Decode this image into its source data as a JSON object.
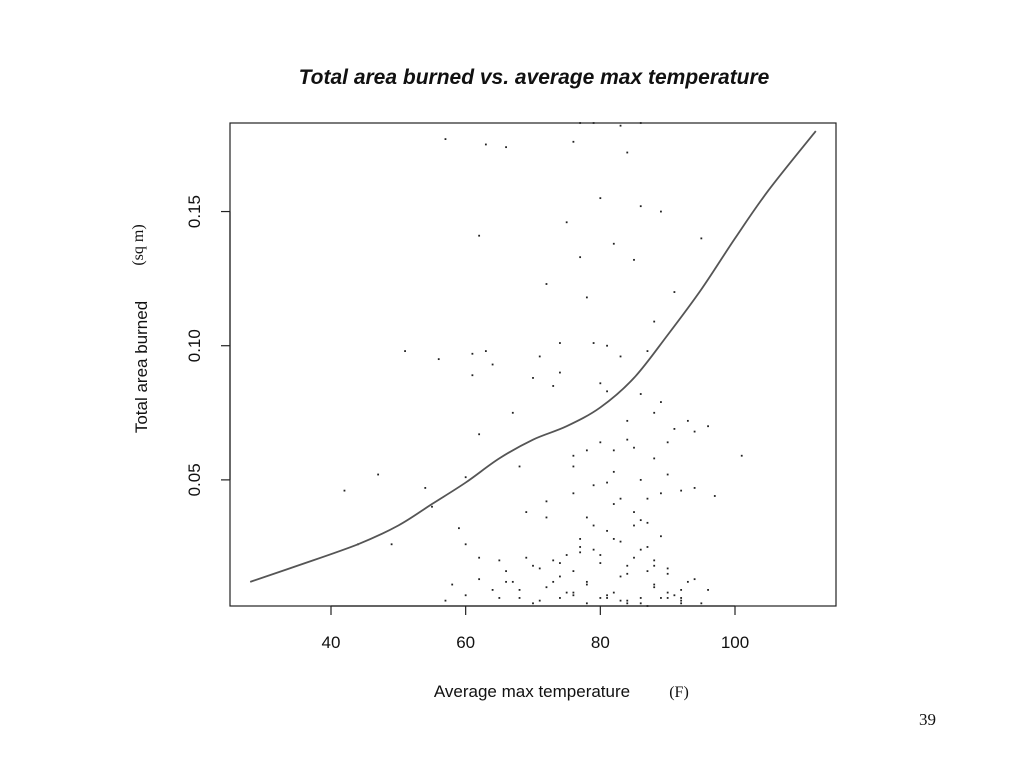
{
  "slide": {
    "page_number": "39"
  },
  "chart_data": {
    "type": "scatter",
    "title": "Total area burned vs. average max temperature",
    "xlabel": "Average max temperature",
    "xlabel_unit": "(F)",
    "ylabel": "Total area burned",
    "ylabel_unit": "(sq m)",
    "xlim": [
      25,
      115
    ],
    "ylim": [
      0.003,
      0.183
    ],
    "x_ticks": [
      40,
      60,
      80,
      100
    ],
    "y_ticks": [
      0.05,
      0.1,
      0.15
    ],
    "x_tick_labels": [
      "40",
      "60",
      "80",
      "100"
    ],
    "y_tick_labels": [
      "0.05",
      "0.10",
      "0.15"
    ],
    "grid": false,
    "colors": {
      "points": "#222222",
      "curve": "#555555",
      "frame": "#222222"
    },
    "trend_curve": {
      "x": [
        28,
        35,
        44,
        50,
        55,
        60,
        65,
        70,
        75,
        80,
        85,
        90,
        95,
        100,
        105,
        112
      ],
      "y": [
        0.012,
        0.018,
        0.026,
        0.033,
        0.041,
        0.049,
        0.058,
        0.065,
        0.07,
        0.077,
        0.088,
        0.104,
        0.121,
        0.14,
        0.158,
        0.18
      ]
    },
    "points": {
      "x": [
        42,
        44,
        47,
        49,
        51,
        54,
        55,
        56,
        57,
        59,
        60,
        61,
        61,
        62,
        62,
        63,
        63,
        64,
        65,
        66,
        67,
        68,
        69,
        70,
        71,
        72,
        72,
        73,
        74,
        74,
        75,
        76,
        76,
        77,
        77,
        78,
        78,
        79,
        79,
        80,
        80,
        81,
        81,
        82,
        82,
        83,
        83,
        84,
        84,
        85,
        85,
        86,
        86,
        87,
        87,
        88,
        88,
        89,
        89,
        90,
        90,
        91,
        92,
        93,
        94,
        95,
        96,
        97,
        101,
        58,
        60,
        62,
        64,
        66,
        68,
        70,
        72,
        74,
        76,
        78,
        80,
        82,
        84,
        86,
        88,
        90,
        92,
        94,
        75,
        77,
        79,
        81,
        83,
        85,
        87,
        89,
        73,
        76,
        80,
        84,
        86,
        88,
        90,
        78,
        82,
        85,
        87,
        83,
        86,
        89,
        92,
        95,
        57,
        67,
        75,
        81,
        84,
        88,
        91,
        69,
        71,
        74,
        77,
        80,
        83,
        85,
        87,
        90,
        93,
        96,
        72,
        76,
        79,
        82,
        86,
        89,
        94,
        65,
        68,
        71,
        73,
        76,
        78,
        81,
        84,
        87,
        90,
        92,
        60,
        62,
        66,
        70,
        74,
        78,
        82,
        86,
        88,
        92,
        77,
        79,
        83,
        86,
        84,
        81,
        88,
        91,
        76,
        80
      ],
      "y": [
        0.046,
        0.026,
        0.052,
        0.026,
        0.098,
        0.047,
        0.04,
        0.095,
        0.177,
        0.032,
        0.051,
        0.097,
        0.089,
        0.067,
        0.141,
        0.098,
        0.175,
        0.093,
        0.02,
        0.174,
        0.075,
        0.055,
        0.038,
        0.088,
        0.096,
        0.123,
        0.036,
        0.085,
        0.101,
        0.09,
        0.146,
        0.176,
        0.045,
        0.133,
        0.025,
        0.118,
        0.061,
        0.101,
        0.033,
        0.155,
        0.086,
        0.1,
        0.049,
        0.061,
        0.138,
        0.043,
        0.096,
        0.072,
        0.172,
        0.132,
        0.062,
        0.082,
        0.152,
        0.043,
        0.098,
        0.109,
        0.058,
        0.079,
        0.15,
        0.052,
        0.064,
        0.12,
        0.046,
        0.072,
        0.068,
        0.14,
        0.07,
        0.044,
        0.059,
        0.011,
        0.007,
        0.013,
        0.009,
        0.016,
        0.006,
        0.018,
        0.01,
        0.014,
        0.007,
        0.012,
        0.019,
        0.008,
        0.015,
        0.006,
        0.011,
        0.017,
        0.009,
        0.013,
        0.022,
        0.028,
        0.024,
        0.031,
        0.027,
        0.033,
        0.025,
        0.029,
        0.02,
        0.016,
        0.022,
        0.018,
        0.024,
        0.02,
        0.015,
        0.036,
        0.041,
        0.038,
        0.034,
        0.005,
        0.004,
        0.006,
        0.005,
        0.004,
        0.005,
        0.012,
        0.008,
        0.006,
        0.004,
        0.01,
        0.007,
        0.021,
        0.017,
        0.019,
        0.023,
        0.006,
        0.014,
        0.021,
        0.016,
        0.008,
        0.012,
        0.009,
        0.042,
        0.055,
        0.048,
        0.053,
        0.05,
        0.045,
        0.047,
        0.006,
        0.009,
        0.005,
        0.012,
        0.008,
        0.004,
        0.007,
        0.005,
        0.003,
        0.006,
        0.004,
        0.026,
        0.021,
        0.012,
        0.004,
        0.006,
        0.011,
        0.028,
        0.035,
        0.018,
        0.006,
        0.183,
        0.183,
        0.182,
        0.183,
        0.065,
        0.083,
        0.075,
        0.069,
        0.059,
        0.064
      ]
    }
  }
}
